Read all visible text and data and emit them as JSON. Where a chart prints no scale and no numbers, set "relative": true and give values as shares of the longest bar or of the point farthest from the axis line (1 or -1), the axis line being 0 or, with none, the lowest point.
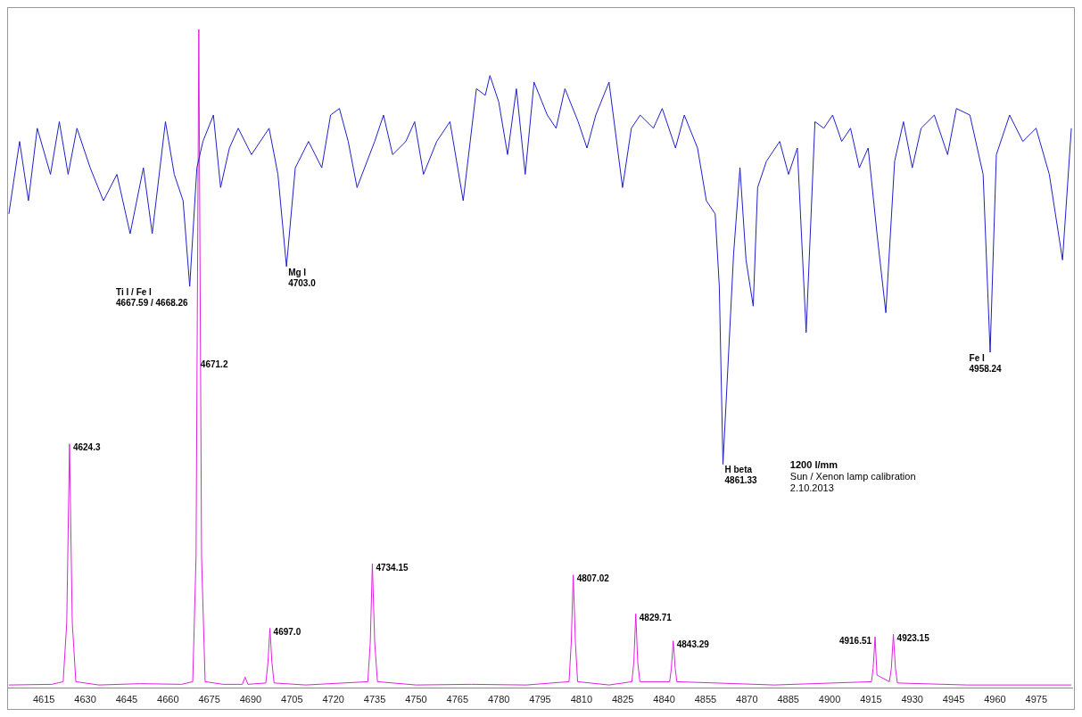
{
  "chart_data": {
    "type": "line",
    "relative": true,
    "grid": false,
    "legend": false,
    "marker": "none",
    "line_style": "solid",
    "xlim": [
      4602,
      4988
    ],
    "xticks": [
      4615,
      4630,
      4645,
      4660,
      4675,
      4690,
      4705,
      4720,
      4735,
      4750,
      4765,
      4780,
      4795,
      4810,
      4825,
      4840,
      4855,
      4870,
      4885,
      4900,
      4915,
      4930,
      4945,
      4960,
      4975
    ],
    "series": [
      {
        "color": "#2020c8",
        "x": [
          4602.3,
          4606.2,
          4609.4,
          4612.6,
          4617.4,
          4620.6,
          4623.8,
          4627.0,
          4631.8,
          4636.6,
          4641.5,
          4646.3,
          4651.1,
          4654.3,
          4659.1,
          4662.3,
          4665.5,
          4667.9,
          4670.5,
          4672.7,
          4676.5,
          4679.1,
          4682.3,
          4685.5,
          4690.3,
          4696.7,
          4699.9,
          4703.0,
          4706.2,
          4711.0,
          4715.8,
          4719.0,
          4722.2,
          4725.4,
          4728.6,
          4735.0,
          4738.2,
          4741.5,
          4746.3,
          4749.5,
          4752.7,
          4757.5,
          4762.3,
          4767.1,
          4771.9,
          4775.1,
          4776.8,
          4780.0,
          4783.2,
          4786.4,
          4789.6,
          4792.8,
          4797.6,
          4800.8,
          4804.0,
          4808.8,
          4812.0,
          4815.2,
          4820.0,
          4824.9,
          4828.1,
          4831.3,
          4836.1,
          4839.3,
          4844.1,
          4847.3,
          4852.1,
          4855.3,
          4858.5,
          4860.0,
          4861.33,
          4865.2,
          4867.5,
          4869.7,
          4872.3,
          4873.9,
          4877.1,
          4881.9,
          4885.1,
          4888.3,
          4891.5,
          4894.7,
          4897.9,
          4901.1,
          4904.4,
          4907.6,
          4910.8,
          4914.0,
          4917.2,
          4920.4,
          4923.6,
          4926.8,
          4930.0,
          4933.2,
          4938.0,
          4942.8,
          4946.0,
          4950.9,
          4955.7,
          4958.24,
          4960.5,
          4965.3,
          4970.1,
          4974.9,
          4979.7,
          4984.5,
          4987.7
        ],
        "values": [
          0.72,
          0.83,
          0.74,
          0.85,
          0.78,
          0.86,
          0.78,
          0.85,
          0.79,
          0.74,
          0.78,
          0.69,
          0.79,
          0.69,
          0.86,
          0.78,
          0.74,
          0.61,
          0.79,
          0.83,
          0.87,
          0.76,
          0.82,
          0.85,
          0.81,
          0.85,
          0.78,
          0.64,
          0.79,
          0.83,
          0.79,
          0.87,
          0.88,
          0.83,
          0.76,
          0.83,
          0.87,
          0.81,
          0.83,
          0.86,
          0.78,
          0.83,
          0.86,
          0.74,
          0.91,
          0.9,
          0.93,
          0.89,
          0.81,
          0.91,
          0.78,
          0.92,
          0.87,
          0.85,
          0.91,
          0.86,
          0.82,
          0.87,
          0.92,
          0.76,
          0.85,
          0.87,
          0.85,
          0.88,
          0.82,
          0.87,
          0.82,
          0.74,
          0.72,
          0.61,
          0.34,
          0.66,
          0.79,
          0.65,
          0.58,
          0.76,
          0.8,
          0.83,
          0.78,
          0.82,
          0.54,
          0.86,
          0.85,
          0.87,
          0.83,
          0.85,
          0.79,
          0.82,
          0.69,
          0.57,
          0.8,
          0.86,
          0.79,
          0.85,
          0.87,
          0.81,
          0.88,
          0.87,
          0.78,
          0.51,
          0.81,
          0.87,
          0.83,
          0.85,
          0.78,
          0.65,
          0.85
        ]
      },
      {
        "color": "#e020e0",
        "x": [
          4602.3,
          4618,
          4622,
          4623.3,
          4624.3,
          4625.3,
          4626.6,
          4635,
          4650,
          4665,
          4669,
          4670.2,
          4671.2,
          4672.2,
          4673.5,
          4680,
          4687,
          4688,
          4689,
          4695.5,
          4696.3,
          4697,
          4697.7,
          4698.5,
          4710,
          4732.5,
          4733.4,
          4734.15,
          4735,
          4736,
          4750,
          4770,
          4790,
          4805.5,
          4806.3,
          4807.02,
          4807.8,
          4808.6,
          4820,
          4828.3,
          4829,
          4829.71,
          4830.4,
          4831.2,
          4842,
          4842.6,
          4843.29,
          4844,
          4844.6,
          4880,
          4915.2,
          4915.8,
          4916.51,
          4917.2,
          4921.7,
          4922.4,
          4923.15,
          4923.9,
          4924.6,
          4950,
          4987.7
        ],
        "values": [
          0.005,
          0.006,
          0.01,
          0.1,
          0.371,
          0.1,
          0.01,
          0.005,
          0.007,
          0.006,
          0.01,
          0.2,
          1,
          0.2,
          0.01,
          0.006,
          0.006,
          0.017,
          0.006,
          0.008,
          0.04,
          0.091,
          0.04,
          0.008,
          0.005,
          0.01,
          0.07,
          0.189,
          0.07,
          0.01,
          0.005,
          0.006,
          0.005,
          0.01,
          0.07,
          0.172,
          0.07,
          0.01,
          0.005,
          0.01,
          0.04,
          0.113,
          0.04,
          0.01,
          0.01,
          0.03,
          0.072,
          0.03,
          0.01,
          0.005,
          0.01,
          0.03,
          0.078,
          0.02,
          0.01,
          0.03,
          0.082,
          0.03,
          0.008,
          0.005,
          0.005
        ]
      }
    ],
    "annotations": [
      {
        "text": "Ti I / Fe I\n4667.59 / 4668.26",
        "x": 4667.9,
        "y": 0.61
      },
      {
        "text": "Mg I\n4703.0",
        "x": 4703.0,
        "y": 0.64
      },
      {
        "text": "H beta\n4861.33",
        "x": 4861.33,
        "y": 0.34
      },
      {
        "text": "Fe I\n4958.24",
        "x": 4958.24,
        "y": 0.51
      },
      {
        "text": "4624.3",
        "x": 4624.3,
        "y": 0.371
      },
      {
        "text": "4671.2",
        "x": 4671.2,
        "y": 0.5
      },
      {
        "text": "4697.0",
        "x": 4697,
        "y": 0.091
      },
      {
        "text": "4734.15",
        "x": 4734.15,
        "y": 0.189
      },
      {
        "text": "4807.02",
        "x": 4807.02,
        "y": 0.172
      },
      {
        "text": "4829.71",
        "x": 4829.71,
        "y": 0.113
      },
      {
        "text": "4843.29",
        "x": 4843.29,
        "y": 0.072
      },
      {
        "text": "4916.51",
        "x": 4916.51,
        "y": 0.078
      },
      {
        "text": "4923.15",
        "x": 4923.15,
        "y": 0.082
      },
      "1200 l/mm",
      "Sun / Xenon lamp calibration",
      "2.10.2013"
    ]
  }
}
